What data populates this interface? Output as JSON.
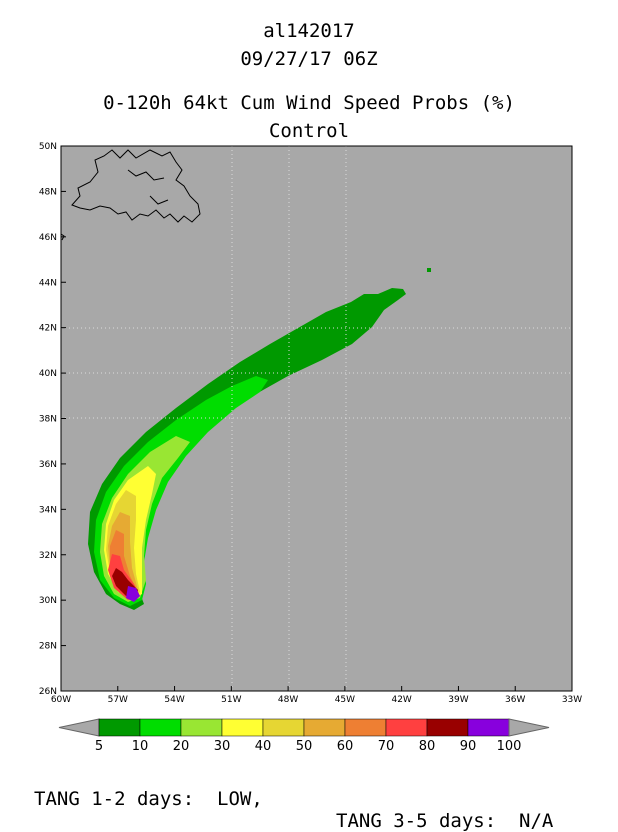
{
  "header": {
    "storm_id": "al142017",
    "datetime": "09/27/17 06Z",
    "product": "0-120h 64kt Cum Wind Speed Probs (%)",
    "run": "Control"
  },
  "map": {
    "lon_range": [
      -60,
      -33
    ],
    "lat_range": [
      26,
      50
    ],
    "lon_ticks": [
      "60W",
      "57W",
      "54W",
      "51W",
      "48W",
      "45W",
      "42W",
      "39W",
      "36W",
      "33W"
    ],
    "lat_ticks": [
      "26N",
      "28N",
      "30N",
      "32N",
      "34N",
      "36N",
      "38N",
      "40N",
      "42N",
      "44N",
      "46N",
      "48N",
      "50N"
    ],
    "ocean_color": "#a8a8a8",
    "grid": "dotted"
  },
  "colorbar": {
    "labels": [
      "5",
      "10",
      "20",
      "30",
      "40",
      "50",
      "60",
      "70",
      "80",
      "90",
      "100"
    ],
    "colors": [
      "#009900",
      "#00dd00",
      "#99e633",
      "#ffff33",
      "#e6d633",
      "#e6aa33",
      "#ee7f33",
      "#ff4040",
      "#990000",
      "#8800dd"
    ]
  },
  "footer": {
    "tang_1_2": "TANG 1-2 days:  LOW,",
    "tang_3_5": "TANG 3-5 days:  N/A"
  }
}
